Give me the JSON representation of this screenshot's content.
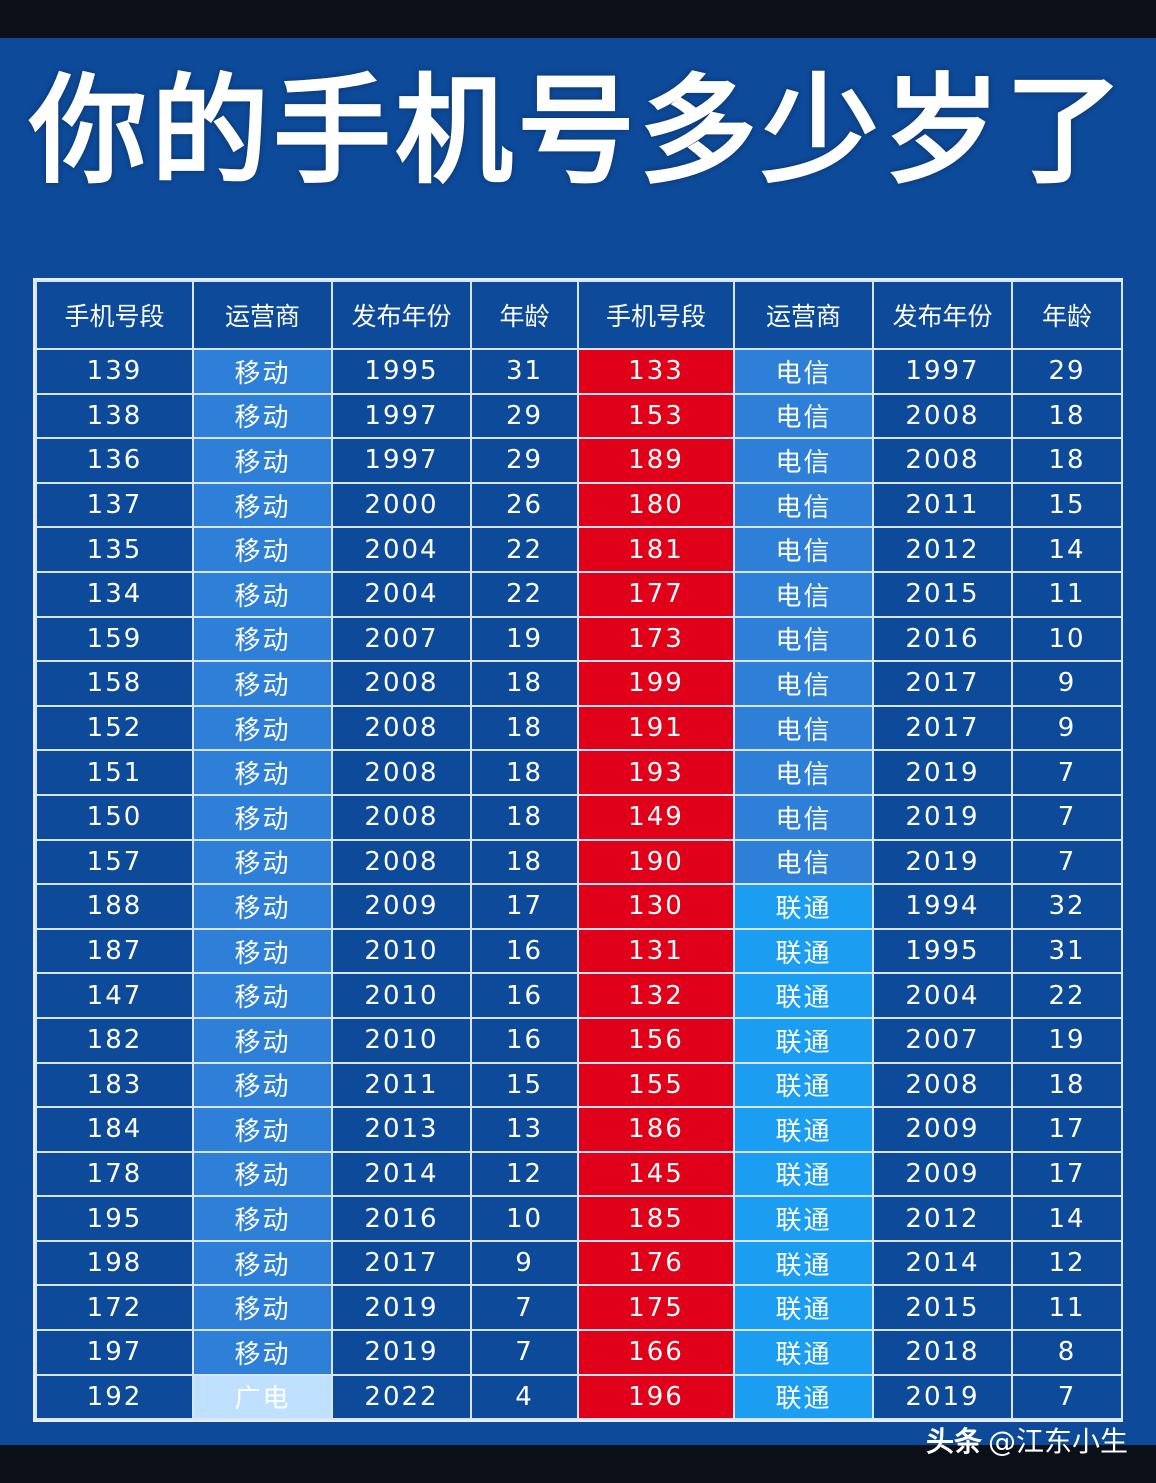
{
  "title": "你的手机号多少岁了",
  "colors": {
    "background": "#0d4a9a",
    "prefix_highlight": "#e00019",
    "carrier_mobile": "#2e7fd7",
    "carrier_telecom": "#2e7fd7",
    "carrier_unicom": "#1b9ef2",
    "carrier_broadcast": "#bfe0ff"
  },
  "headers": [
    "手机号段",
    "运营商",
    "发布年份",
    "年龄",
    "手机号段",
    "运营商",
    "发布年份",
    "年龄"
  ],
  "rows": [
    [
      "139",
      "移动",
      "1995",
      "31",
      "133",
      "电信",
      "1997",
      "29"
    ],
    [
      "138",
      "移动",
      "1997",
      "29",
      "153",
      "电信",
      "2008",
      "18"
    ],
    [
      "136",
      "移动",
      "1997",
      "29",
      "189",
      "电信",
      "2008",
      "18"
    ],
    [
      "137",
      "移动",
      "2000",
      "26",
      "180",
      "电信",
      "2011",
      "15"
    ],
    [
      "135",
      "移动",
      "2004",
      "22",
      "181",
      "电信",
      "2012",
      "14"
    ],
    [
      "134",
      "移动",
      "2004",
      "22",
      "177",
      "电信",
      "2015",
      "11"
    ],
    [
      "159",
      "移动",
      "2007",
      "19",
      "173",
      "电信",
      "2016",
      "10"
    ],
    [
      "158",
      "移动",
      "2008",
      "18",
      "199",
      "电信",
      "2017",
      "9"
    ],
    [
      "152",
      "移动",
      "2008",
      "18",
      "191",
      "电信",
      "2017",
      "9"
    ],
    [
      "151",
      "移动",
      "2008",
      "18",
      "193",
      "电信",
      "2019",
      "7"
    ],
    [
      "150",
      "移动",
      "2008",
      "18",
      "149",
      "电信",
      "2019",
      "7"
    ],
    [
      "157",
      "移动",
      "2008",
      "18",
      "190",
      "电信",
      "2019",
      "7"
    ],
    [
      "188",
      "移动",
      "2009",
      "17",
      "130",
      "联通",
      "1994",
      "32"
    ],
    [
      "187",
      "移动",
      "2010",
      "16",
      "131",
      "联通",
      "1995",
      "31"
    ],
    [
      "147",
      "移动",
      "2010",
      "16",
      "132",
      "联通",
      "2004",
      "22"
    ],
    [
      "182",
      "移动",
      "2010",
      "16",
      "156",
      "联通",
      "2007",
      "19"
    ],
    [
      "183",
      "移动",
      "2011",
      "15",
      "155",
      "联通",
      "2008",
      "18"
    ],
    [
      "184",
      "移动",
      "2013",
      "13",
      "186",
      "联通",
      "2009",
      "17"
    ],
    [
      "178",
      "移动",
      "2014",
      "12",
      "145",
      "联通",
      "2009",
      "17"
    ],
    [
      "195",
      "移动",
      "2016",
      "10",
      "185",
      "联通",
      "2012",
      "14"
    ],
    [
      "198",
      "移动",
      "2017",
      "9",
      "176",
      "联通",
      "2014",
      "12"
    ],
    [
      "172",
      "移动",
      "2019",
      "7",
      "175",
      "联通",
      "2015",
      "11"
    ],
    [
      "197",
      "移动",
      "2019",
      "7",
      "166",
      "联通",
      "2018",
      "8"
    ],
    [
      "192",
      "广电",
      "2022",
      "4",
      "196",
      "联通",
      "2019",
      "7"
    ]
  ],
  "watermark": {
    "brand": "头条",
    "author": "@江东小生"
  }
}
